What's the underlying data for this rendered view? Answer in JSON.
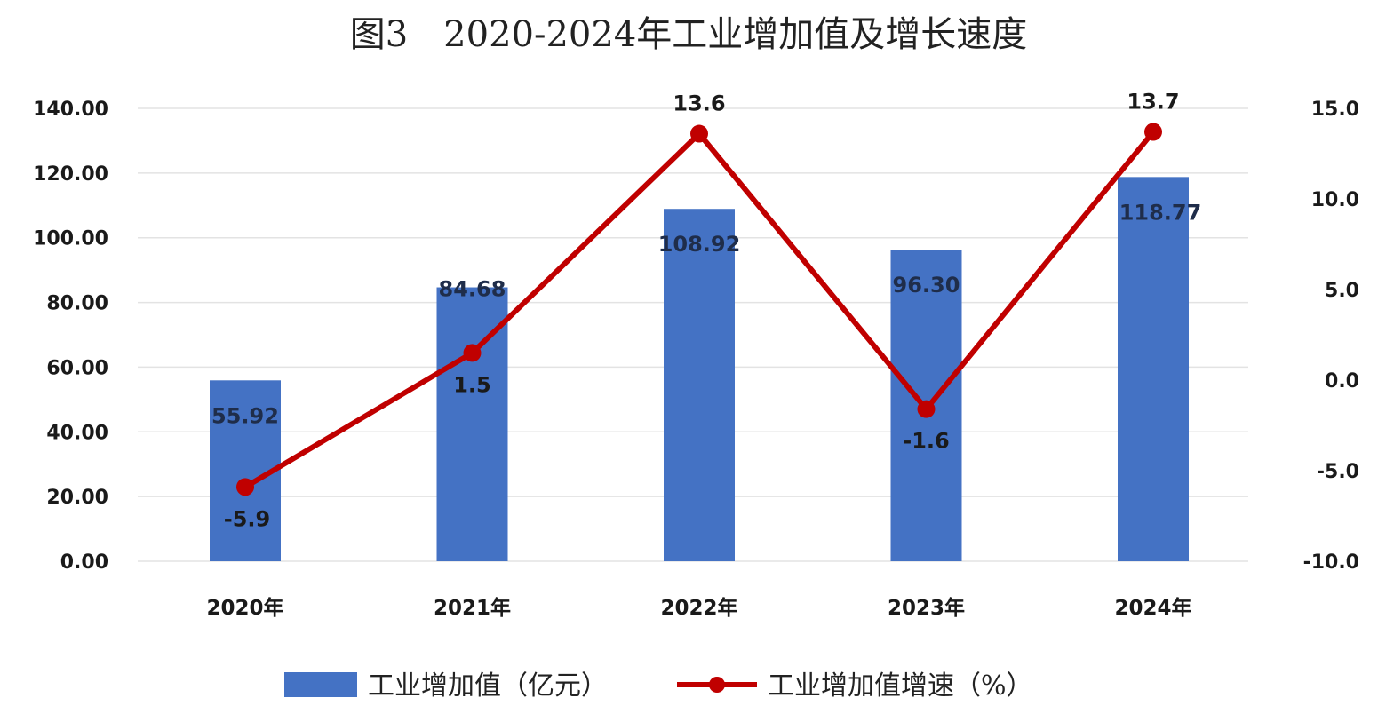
{
  "chart_data": {
    "type": "bar",
    "title": "图3　2020-2024年工业增加值及增长速度",
    "categories": [
      "2020年",
      "2021年",
      "2022年",
      "2023年",
      "2024年"
    ],
    "series": [
      {
        "name": "工业增加值（亿元）",
        "type": "bar",
        "axis": "left",
        "values": [
          55.92,
          84.68,
          108.92,
          96.3,
          118.77
        ],
        "labels": [
          "55.92",
          "84.68",
          "108.92",
          "96.30",
          "118.77"
        ],
        "color": "#4472c4"
      },
      {
        "name": "工业增加值增速（%）",
        "type": "line",
        "axis": "right",
        "values": [
          -5.9,
          1.5,
          13.6,
          -1.6,
          13.7
        ],
        "labels": [
          "-5.9",
          "1.5",
          "13.6",
          "-1.6",
          "13.7"
        ],
        "color": "#c00000"
      }
    ],
    "y_left": {
      "min": 0,
      "max": 140,
      "step": 20,
      "ticks": [
        "0.00",
        "20.00",
        "40.00",
        "60.00",
        "80.00",
        "100.00",
        "120.00",
        "140.00"
      ]
    },
    "y_right": {
      "min": -10,
      "max": 15,
      "step": 5,
      "ticks": [
        "-10.0",
        "-5.0",
        "0.0",
        "5.0",
        "10.0",
        "15.0"
      ]
    },
    "grid": true,
    "legend_position": "bottom"
  }
}
